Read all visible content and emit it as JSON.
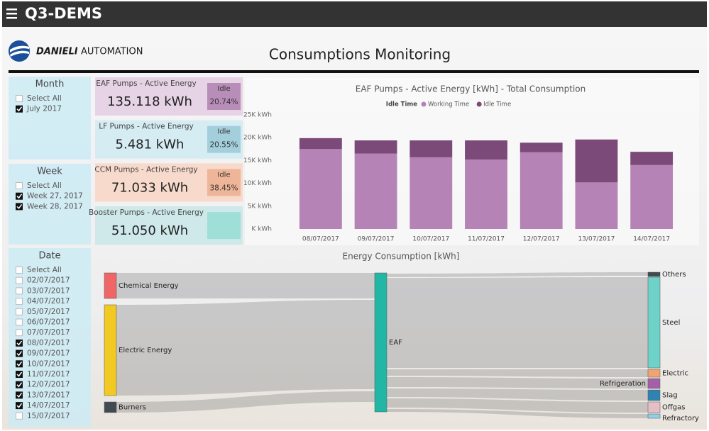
{
  "app": {
    "title": "Q3-DEMS"
  },
  "header": {
    "logo": "DANIELI",
    "logo_suffix": "AUTOMATION",
    "title": "Consumptions Monitoring"
  },
  "slicers": [
    {
      "title": "Month",
      "items": [
        {
          "label": "Select All",
          "checked": false
        },
        {
          "label": "July 2017",
          "checked": true
        }
      ]
    },
    {
      "title": "Week",
      "items": [
        {
          "label": "Select All",
          "checked": false
        },
        {
          "label": "Week 27, 2017",
          "checked": true
        },
        {
          "label": "Week 28, 2017",
          "checked": true
        }
      ]
    },
    {
      "title": "Date",
      "items": [
        {
          "label": "Select All",
          "checked": false
        },
        {
          "label": "02/07/2017",
          "checked": false
        },
        {
          "label": "03/07/2017",
          "checked": false
        },
        {
          "label": "04/07/2017",
          "checked": false
        },
        {
          "label": "05/07/2017",
          "checked": false
        },
        {
          "label": "06/07/2017",
          "checked": false
        },
        {
          "label": "07/07/2017",
          "checked": false
        },
        {
          "label": "08/07/2017",
          "checked": true
        },
        {
          "label": "09/07/2017",
          "checked": true
        },
        {
          "label": "10/07/2017",
          "checked": true
        },
        {
          "label": "11/07/2017",
          "checked": true
        },
        {
          "label": "12/07/2017",
          "checked": true
        },
        {
          "label": "13/07/2017",
          "checked": true
        },
        {
          "label": "14/07/2017",
          "checked": true
        },
        {
          "label": "15/07/2017",
          "checked": false
        }
      ]
    }
  ],
  "cards": [
    {
      "title": "EAF Pumps - Active Energy",
      "value": "135.118 kWh",
      "idle_label": "Idle",
      "idle": "20.74%",
      "color": "#e6d3e6",
      "idle_color": "#b88db8"
    },
    {
      "title": "LF Pumps - Active Energy",
      "value": "5.481 kWh",
      "idle_label": "Idle",
      "idle": "20.55%",
      "color": "#d5ecf3",
      "idle_color": "#a3cfdc"
    },
    {
      "title": "CCM Pumps - Active Energy",
      "value": "71.033 kWh",
      "idle_label": "Idle",
      "idle": "38.45%",
      "color": "#f7dacb",
      "idle_color": "#efb598"
    },
    {
      "title": "Booster Pumps - Active Energy",
      "value": "51.050 kWh",
      "color": "#cfe9ea",
      "idle_color": "#9ee0d8"
    }
  ],
  "chart_data": {
    "type": "bar",
    "stacked": true,
    "title": "EAF Pumps - Active Energy [kWh] - Total Consumption",
    "legend_title": "Idle Time",
    "categories": [
      "08/07/2017",
      "09/07/2017",
      "10/07/2017",
      "11/07/2017",
      "12/07/2017",
      "13/07/2017",
      "14/07/2017"
    ],
    "series": [
      {
        "name": "Working Time",
        "color": "#b583b5",
        "values": [
          17500,
          16500,
          15700,
          15200,
          16800,
          10200,
          14000
        ]
      },
      {
        "name": "Idle Time",
        "color": "#7b4a79",
        "values": [
          2400,
          2900,
          3700,
          4200,
          2100,
          9400,
          2900
        ]
      }
    ],
    "ylim": [
      0,
      25000
    ],
    "yticks": [
      {
        "value": 0,
        "label": "K kWh"
      },
      {
        "value": 5000,
        "label": "5K kWh"
      },
      {
        "value": 10000,
        "label": "10K kWh"
      },
      {
        "value": 15000,
        "label": "15K kWh"
      },
      {
        "value": 20000,
        "label": "20K kWh"
      },
      {
        "value": 25000,
        "label": "25K kWh"
      }
    ],
    "grid": false
  },
  "sankey": {
    "title": "Energy Consumption [kWh]",
    "nodes": [
      {
        "label": "Chemical Energy",
        "color": "#f06565"
      },
      {
        "label": "Electric Energy",
        "color": "#f2c823"
      },
      {
        "label": "Burners",
        "color": "#3f4b50"
      },
      {
        "label": "EAF",
        "color": "#22b6a4"
      },
      {
        "label": "Others",
        "color": "#3f4b50"
      },
      {
        "label": "Steel",
        "color": "#6fd2c8"
      },
      {
        "label": "Electric",
        "color": "#f2a46e"
      },
      {
        "label": "Refrigeration",
        "color": "#a55fa8"
      },
      {
        "label": "Slag",
        "color": "#2f83b0"
      },
      {
        "label": "Offgas",
        "color": "#e6bfc6"
      },
      {
        "label": "Refractory",
        "color": "#8fd0e8"
      }
    ]
  }
}
